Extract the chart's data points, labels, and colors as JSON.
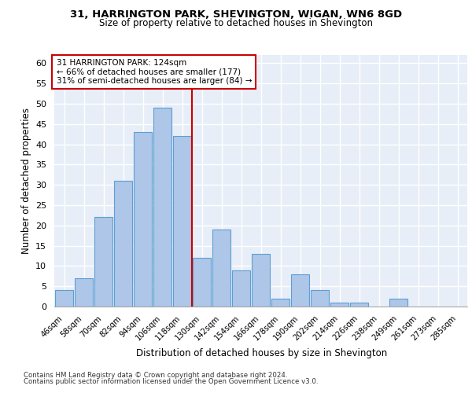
{
  "title1": "31, HARRINGTON PARK, SHEVINGTON, WIGAN, WN6 8GD",
  "title2": "Size of property relative to detached houses in Shevington",
  "xlabel": "Distribution of detached houses by size in Shevington",
  "ylabel": "Number of detached properties",
  "categories": [
    "46sqm",
    "58sqm",
    "70sqm",
    "82sqm",
    "94sqm",
    "106sqm",
    "118sqm",
    "130sqm",
    "142sqm",
    "154sqm",
    "166sqm",
    "178sqm",
    "190sqm",
    "202sqm",
    "214sqm",
    "226sqm",
    "238sqm",
    "249sqm",
    "261sqm",
    "273sqm",
    "285sqm"
  ],
  "values": [
    4,
    7,
    22,
    31,
    43,
    49,
    42,
    12,
    19,
    9,
    13,
    2,
    8,
    4,
    1,
    1,
    0,
    2,
    0,
    0,
    0
  ],
  "bar_color": "#aec6e8",
  "bar_edge_color": "#5a9fd4",
  "background_color": "#e8eef8",
  "grid_color": "#ffffff",
  "red_line_x": 6.5,
  "annotation_title": "31 HARRINGTON PARK: 124sqm",
  "annotation_line1": "← 66% of detached houses are smaller (177)",
  "annotation_line2": "31% of semi-detached houses are larger (84) →",
  "annotation_box_color": "#ffffff",
  "annotation_box_edge": "#cc0000",
  "red_line_color": "#cc0000",
  "ylim": [
    0,
    62
  ],
  "yticks": [
    0,
    5,
    10,
    15,
    20,
    25,
    30,
    35,
    40,
    45,
    50,
    55,
    60
  ],
  "footer1": "Contains HM Land Registry data © Crown copyright and database right 2024.",
  "footer2": "Contains public sector information licensed under the Open Government Licence v3.0."
}
